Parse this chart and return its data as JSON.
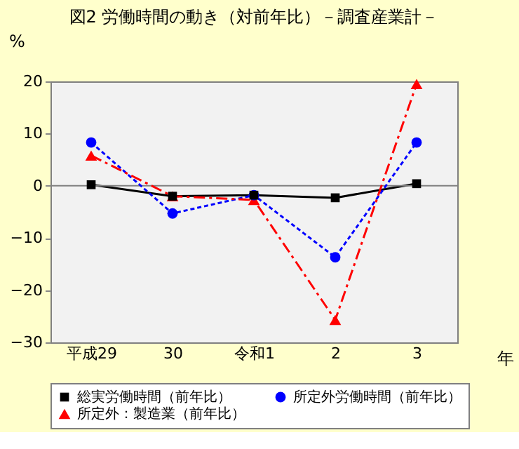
{
  "chart_data": {
    "type": "line",
    "title": "図2  労働時間の動き（対前年比）－調査産業計－",
    "ylabel": "%",
    "xlabel": "年",
    "categories": [
      "平成29",
      "30",
      "令和1",
      "2",
      "3"
    ],
    "ylim": [
      -30,
      20
    ],
    "yticks": [
      -30,
      -20,
      -10,
      0,
      10,
      20
    ],
    "grid": false,
    "legend": "bottom",
    "ref_lines": [
      {
        "axis": "y",
        "value": 0,
        "color": "#808080"
      }
    ],
    "series": [
      {
        "name": "総実労働時間（前年比）",
        "color": "#000000",
        "marker": "square",
        "line_style": "solid",
        "values": [
          0.2,
          -2.0,
          -1.8,
          -2.3,
          0.4
        ]
      },
      {
        "name": "所定外労働時間（前年比）",
        "color": "#0000ff",
        "marker": "circle",
        "line_style": "dotted",
        "values": [
          8.3,
          -5.3,
          -1.8,
          -13.7,
          8.3
        ]
      },
      {
        "name": "所定外：製造業（前年比）",
        "color": "#ff0000",
        "marker": "triangle",
        "line_style": "dashed",
        "values": [
          5.8,
          -2.0,
          -2.7,
          -25.7,
          19.5
        ]
      }
    ]
  }
}
